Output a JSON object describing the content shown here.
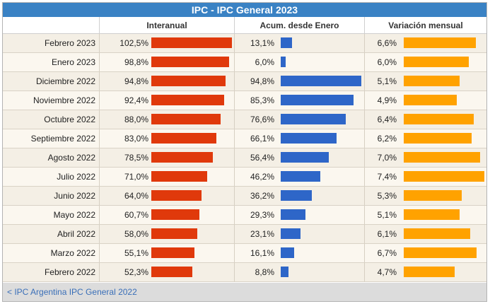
{
  "chart_data": {
    "type": "table",
    "title": "IPC - IPC General 2023",
    "columns": [
      "",
      "Interanual",
      "Acum. desde Enero",
      "Variación mensual"
    ],
    "rows": [
      {
        "label": "Febrero 2023",
        "interanual": 102.5,
        "interanual_text": "102,5%",
        "acumulado": 13.1,
        "acumulado_text": "13,1%",
        "mensual": 6.6,
        "mensual_text": "6,6%"
      },
      {
        "label": "Enero 2023",
        "interanual": 98.8,
        "interanual_text": "98,8%",
        "acumulado": 6.0,
        "acumulado_text": "6,0%",
        "mensual": 6.0,
        "mensual_text": "6,0%"
      },
      {
        "label": "Diciembre 2022",
        "interanual": 94.8,
        "interanual_text": "94,8%",
        "acumulado": 94.8,
        "acumulado_text": "94,8%",
        "mensual": 5.1,
        "mensual_text": "5,1%"
      },
      {
        "label": "Noviembre 2022",
        "interanual": 92.4,
        "interanual_text": "92,4%",
        "acumulado": 85.3,
        "acumulado_text": "85,3%",
        "mensual": 4.9,
        "mensual_text": "4,9%"
      },
      {
        "label": "Octubre 2022",
        "interanual": 88.0,
        "interanual_text": "88,0%",
        "acumulado": 76.6,
        "acumulado_text": "76,6%",
        "mensual": 6.4,
        "mensual_text": "6,4%"
      },
      {
        "label": "Septiembre 2022",
        "interanual": 83.0,
        "interanual_text": "83,0%",
        "acumulado": 66.1,
        "acumulado_text": "66,1%",
        "mensual": 6.2,
        "mensual_text": "6,2%"
      },
      {
        "label": "Agosto 2022",
        "interanual": 78.5,
        "interanual_text": "78,5%",
        "acumulado": 56.4,
        "acumulado_text": "56,4%",
        "mensual": 7.0,
        "mensual_text": "7,0%"
      },
      {
        "label": "Julio 2022",
        "interanual": 71.0,
        "interanual_text": "71,0%",
        "acumulado": 46.2,
        "acumulado_text": "46,2%",
        "mensual": 7.4,
        "mensual_text": "7,4%"
      },
      {
        "label": "Junio 2022",
        "interanual": 64.0,
        "interanual_text": "64,0%",
        "acumulado": 36.2,
        "acumulado_text": "36,2%",
        "mensual": 5.3,
        "mensual_text": "5,3%"
      },
      {
        "label": "Mayo 2022",
        "interanual": 60.7,
        "interanual_text": "60,7%",
        "acumulado": 29.3,
        "acumulado_text": "29,3%",
        "mensual": 5.1,
        "mensual_text": "5,1%"
      },
      {
        "label": "Abril 2022",
        "interanual": 58.0,
        "interanual_text": "58,0%",
        "acumulado": 23.1,
        "acumulado_text": "23,1%",
        "mensual": 6.1,
        "mensual_text": "6,1%"
      },
      {
        "label": "Marzo 2022",
        "interanual": 55.1,
        "interanual_text": "55,1%",
        "acumulado": 16.1,
        "acumulado_text": "16,1%",
        "mensual": 6.7,
        "mensual_text": "6,7%"
      },
      {
        "label": "Febrero 2022",
        "interanual": 52.3,
        "interanual_text": "52,3%",
        "acumulado": 8.8,
        "acumulado_text": "8,8%",
        "mensual": 4.7,
        "mensual_text": "4,7%"
      }
    ],
    "colors": {
      "interanual": "#e0390b",
      "acumulado": "#2e66c8",
      "mensual": "#ffa200"
    }
  },
  "footer": {
    "link_label": "< IPC Argentina IPC General 2022"
  }
}
